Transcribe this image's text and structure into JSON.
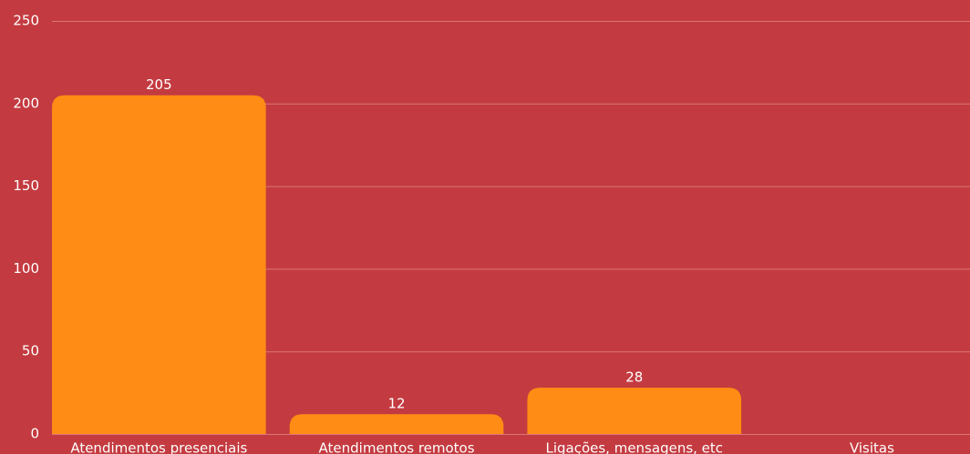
{
  "chart_data": {
    "type": "bar",
    "categories": [
      "Atendimentos presenciais",
      "Atendimentos remotos",
      "Ligações, mensagens, etc",
      "Visitas"
    ],
    "values": [
      205,
      12,
      28,
      null
    ],
    "color": "#ff8c14",
    "ylim": [
      0,
      250
    ],
    "yticks": [
      0,
      50,
      100,
      150,
      200,
      250
    ],
    "grid": true
  }
}
